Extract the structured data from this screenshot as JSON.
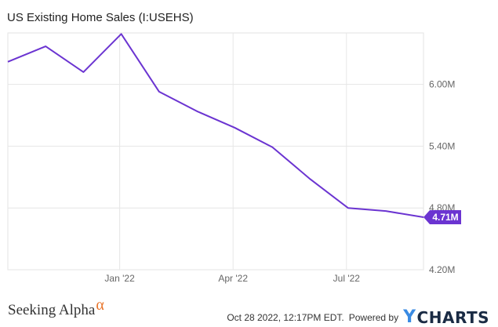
{
  "header": {
    "title": "US Existing Home Sales (I:USEHS)"
  },
  "chart_data": {
    "type": "line",
    "title": "US Existing Home Sales (I:USEHS)",
    "xlabel": "",
    "ylabel": "",
    "x_ticks": [
      "Jan '22",
      "Apr '22",
      "Jul '22"
    ],
    "y_ticks": [
      "4.20M",
      "4.80M",
      "5.40M",
      "6.00M"
    ],
    "ylim": [
      4.2,
      6.5
    ],
    "grid": true,
    "series": [
      {
        "color": "#6b34d1",
        "x": [
          "2021-10",
          "2021-11",
          "2021-12",
          "2022-01",
          "2022-02",
          "2022-03",
          "2022-04",
          "2022-05",
          "2022-06",
          "2022-07",
          "2022-08",
          "2022-09"
        ],
        "values": [
          6.22,
          6.37,
          6.12,
          6.49,
          5.93,
          5.74,
          5.58,
          5.39,
          5.08,
          4.8,
          4.77,
          4.71
        ]
      }
    ],
    "last_value_label": "4.71M"
  },
  "footer": {
    "brand_left": "Seeking Alpha",
    "brand_left_symbol": "α",
    "timestamp": "Oct 28 2022, 12:17PM EDT.",
    "powered_by": "Powered by",
    "brand_right_y": "Y",
    "brand_right_rest": "CHARTS"
  }
}
